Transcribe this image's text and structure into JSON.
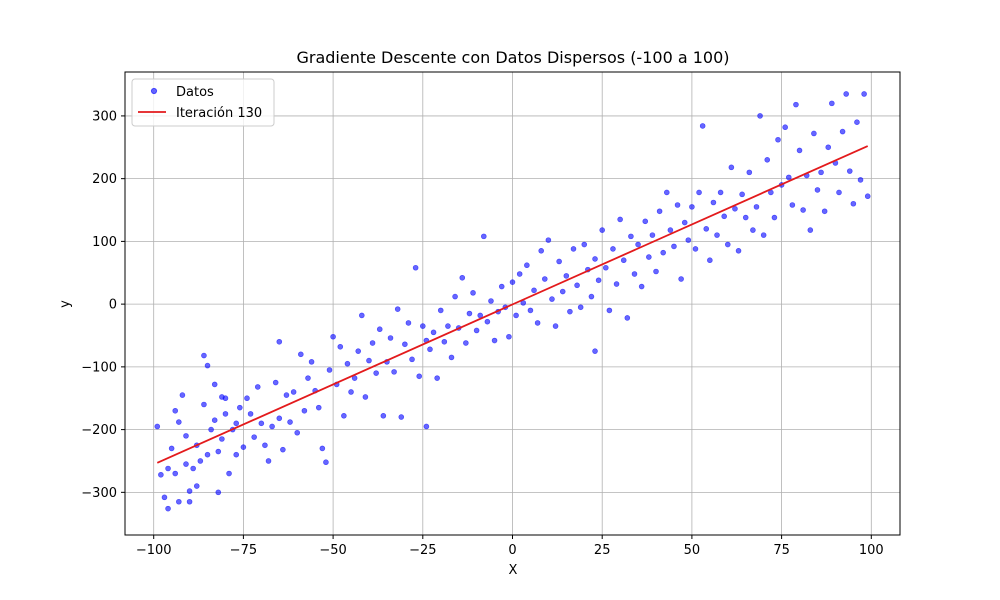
{
  "chart_data": {
    "type": "scatter",
    "title": "Gradiente Descente con Datos Dispersos (-100 a 100)",
    "xlabel": "X",
    "ylabel": "y",
    "xlim": [
      -108,
      108
    ],
    "ylim": [
      -368,
      370
    ],
    "xticks": [
      -100,
      -75,
      -50,
      -25,
      0,
      25,
      50,
      75,
      100
    ],
    "yticks": [
      -300,
      -200,
      -100,
      0,
      100,
      200,
      300
    ],
    "grid": true,
    "legend_position": "top-left",
    "series": [
      {
        "name": "Datos",
        "kind": "scatter",
        "color": "#0000ff",
        "points": [
          [
            -99,
            -195
          ],
          [
            -98,
            -272
          ],
          [
            -97,
            -308
          ],
          [
            -96,
            -262
          ],
          [
            -96,
            -326
          ],
          [
            -95,
            -230
          ],
          [
            -94,
            -170
          ],
          [
            -94,
            -270
          ],
          [
            -93,
            -188
          ],
          [
            -93,
            -315
          ],
          [
            -92,
            -145
          ],
          [
            -91,
            -255
          ],
          [
            -91,
            -210
          ],
          [
            -90,
            -298
          ],
          [
            -90,
            -315
          ],
          [
            -89,
            -262
          ],
          [
            -88,
            -225
          ],
          [
            -88,
            -290
          ],
          [
            -87,
            -250
          ],
          [
            -86,
            -160
          ],
          [
            -86,
            -82
          ],
          [
            -85,
            -98
          ],
          [
            -85,
            -240
          ],
          [
            -84,
            -200
          ],
          [
            -83,
            -128
          ],
          [
            -83,
            -185
          ],
          [
            -82,
            -235
          ],
          [
            -82,
            -300
          ],
          [
            -81,
            -148
          ],
          [
            -81,
            -215
          ],
          [
            -80,
            -175
          ],
          [
            -80,
            -150
          ],
          [
            -79,
            -270
          ],
          [
            -78,
            -200
          ],
          [
            -77,
            -190
          ],
          [
            -77,
            -240
          ],
          [
            -76,
            -165
          ],
          [
            -75,
            -228
          ],
          [
            -74,
            -150
          ],
          [
            -73,
            -175
          ],
          [
            -72,
            -212
          ],
          [
            -71,
            -132
          ],
          [
            -70,
            -190
          ],
          [
            -69,
            -225
          ],
          [
            -68,
            -250
          ],
          [
            -67,
            -195
          ],
          [
            -66,
            -125
          ],
          [
            -65,
            -182
          ],
          [
            -65,
            -60
          ],
          [
            -64,
            -232
          ],
          [
            -63,
            -145
          ],
          [
            -62,
            -188
          ],
          [
            -61,
            -140
          ],
          [
            -60,
            -205
          ],
          [
            -59,
            -80
          ],
          [
            -58,
            -170
          ],
          [
            -57,
            -118
          ],
          [
            -56,
            -92
          ],
          [
            -55,
            -138
          ],
          [
            -54,
            -165
          ],
          [
            -53,
            -230
          ],
          [
            -52,
            -252
          ],
          [
            -51,
            -105
          ],
          [
            -50,
            -52
          ],
          [
            -49,
            -128
          ],
          [
            -48,
            -68
          ],
          [
            -47,
            -178
          ],
          [
            -46,
            -95
          ],
          [
            -45,
            -140
          ],
          [
            -44,
            -118
          ],
          [
            -43,
            -75
          ],
          [
            -42,
            -18
          ],
          [
            -41,
            -148
          ],
          [
            -40,
            -90
          ],
          [
            -39,
            -62
          ],
          [
            -38,
            -110
          ],
          [
            -37,
            -40
          ],
          [
            -36,
            -178
          ],
          [
            -35,
            -92
          ],
          [
            -34,
            -54
          ],
          [
            -33,
            -108
          ],
          [
            -32,
            -8
          ],
          [
            -31,
            -180
          ],
          [
            -30,
            -64
          ],
          [
            -29,
            -30
          ],
          [
            -28,
            -88
          ],
          [
            -27,
            58
          ],
          [
            -26,
            -115
          ],
          [
            -25,
            -35
          ],
          [
            -24,
            -58
          ],
          [
            -24,
            -195
          ],
          [
            -23,
            -72
          ],
          [
            -22,
            -45
          ],
          [
            -21,
            -118
          ],
          [
            -20,
            -10
          ],
          [
            -19,
            -60
          ],
          [
            -18,
            -35
          ],
          [
            -17,
            -85
          ],
          [
            -16,
            12
          ],
          [
            -15,
            -38
          ],
          [
            -14,
            42
          ],
          [
            -13,
            -62
          ],
          [
            -12,
            -15
          ],
          [
            -11,
            18
          ],
          [
            -10,
            -42
          ],
          [
            -9,
            -18
          ],
          [
            -8,
            108
          ],
          [
            -7,
            -28
          ],
          [
            -6,
            5
          ],
          [
            -5,
            -58
          ],
          [
            -4,
            -12
          ],
          [
            -3,
            28
          ],
          [
            -2,
            -5
          ],
          [
            -1,
            -52
          ],
          [
            0,
            35
          ],
          [
            1,
            -18
          ],
          [
            2,
            48
          ],
          [
            3,
            2
          ],
          [
            4,
            62
          ],
          [
            5,
            -10
          ],
          [
            6,
            22
          ],
          [
            7,
            -30
          ],
          [
            8,
            85
          ],
          [
            9,
            40
          ],
          [
            10,
            102
          ],
          [
            11,
            8
          ],
          [
            12,
            -35
          ],
          [
            13,
            68
          ],
          [
            14,
            20
          ],
          [
            15,
            45
          ],
          [
            16,
            -12
          ],
          [
            17,
            88
          ],
          [
            18,
            30
          ],
          [
            19,
            -5
          ],
          [
            20,
            95
          ],
          [
            21,
            55
          ],
          [
            22,
            12
          ],
          [
            23,
            72
          ],
          [
            23,
            -75
          ],
          [
            24,
            38
          ],
          [
            25,
            118
          ],
          [
            26,
            58
          ],
          [
            27,
            -10
          ],
          [
            28,
            88
          ],
          [
            29,
            32
          ],
          [
            30,
            135
          ],
          [
            31,
            70
          ],
          [
            32,
            -22
          ],
          [
            33,
            108
          ],
          [
            34,
            48
          ],
          [
            35,
            95
          ],
          [
            36,
            28
          ],
          [
            37,
            132
          ],
          [
            38,
            75
          ],
          [
            39,
            110
          ],
          [
            40,
            52
          ],
          [
            41,
            148
          ],
          [
            42,
            82
          ],
          [
            43,
            178
          ],
          [
            44,
            118
          ],
          [
            45,
            92
          ],
          [
            46,
            158
          ],
          [
            47,
            40
          ],
          [
            48,
            130
          ],
          [
            49,
            102
          ],
          [
            50,
            155
          ],
          [
            51,
            88
          ],
          [
            52,
            178
          ],
          [
            53,
            284
          ],
          [
            54,
            120
          ],
          [
            55,
            70
          ],
          [
            56,
            162
          ],
          [
            57,
            110
          ],
          [
            58,
            178
          ],
          [
            59,
            140
          ],
          [
            60,
            95
          ],
          [
            61,
            218
          ],
          [
            62,
            152
          ],
          [
            63,
            85
          ],
          [
            64,
            175
          ],
          [
            65,
            138
          ],
          [
            66,
            210
          ],
          [
            67,
            118
          ],
          [
            68,
            155
          ],
          [
            69,
            300
          ],
          [
            70,
            110
          ],
          [
            71,
            230
          ],
          [
            72,
            178
          ],
          [
            73,
            138
          ],
          [
            74,
            262
          ],
          [
            75,
            190
          ],
          [
            76,
            282
          ],
          [
            77,
            202
          ],
          [
            78,
            158
          ],
          [
            79,
            318
          ],
          [
            80,
            245
          ],
          [
            81,
            150
          ],
          [
            82,
            205
          ],
          [
            83,
            118
          ],
          [
            84,
            272
          ],
          [
            85,
            182
          ],
          [
            86,
            210
          ],
          [
            87,
            148
          ],
          [
            88,
            250
          ],
          [
            89,
            320
          ],
          [
            90,
            225
          ],
          [
            91,
            178
          ],
          [
            92,
            275
          ],
          [
            93,
            335
          ],
          [
            94,
            212
          ],
          [
            95,
            160
          ],
          [
            96,
            290
          ],
          [
            97,
            198
          ],
          [
            98,
            335
          ],
          [
            99,
            172
          ]
        ]
      },
      {
        "name": "Iteración 130",
        "kind": "line",
        "color": "#e31a1c",
        "points": [
          [
            -99,
            -253
          ],
          [
            99,
            252
          ]
        ]
      }
    ]
  }
}
